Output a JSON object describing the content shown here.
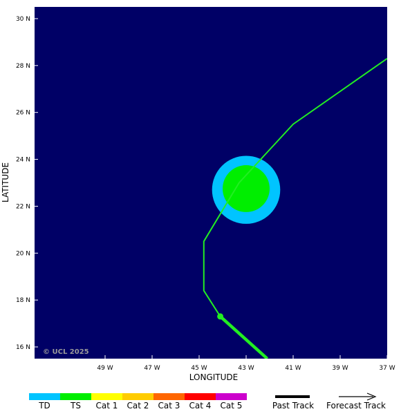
{
  "colors": {
    "ocean": "#000066",
    "track": "#22ee22",
    "td": "#00c4ff",
    "ts": "#00ee00",
    "cat1": "#ffff00",
    "cat2": "#ffcc00",
    "cat3": "#ff6600",
    "cat4": "#ff0000",
    "cat5": "#cc00cc"
  },
  "map": {
    "lon_range": [
      -52.0,
      -37.0
    ],
    "lat_range": [
      15.5,
      30.5
    ],
    "x_ticks": [
      {
        "value": -49,
        "label": "49 W"
      },
      {
        "value": -47,
        "label": "47 W"
      },
      {
        "value": -45,
        "label": "45 W"
      },
      {
        "value": -43,
        "label": "43 W"
      },
      {
        "value": -41,
        "label": "41 W"
      },
      {
        "value": -39,
        "label": "39 W"
      },
      {
        "value": -37,
        "label": "37 W"
      }
    ],
    "y_ticks": [
      {
        "value": 16,
        "label": "16 N"
      },
      {
        "value": 18,
        "label": "18 N"
      },
      {
        "value": 20,
        "label": "20 N"
      },
      {
        "value": 22,
        "label": "22 N"
      },
      {
        "value": 24,
        "label": "24 N"
      },
      {
        "value": 26,
        "label": "26 N"
      },
      {
        "value": 28,
        "label": "28 N"
      },
      {
        "value": 30,
        "label": "30 N"
      }
    ],
    "xlabel": "LONGITUDE",
    "ylabel": "LATITUDE",
    "copyright": "© UCL 2025"
  },
  "past_track": [
    {
      "lon": -44.1,
      "lat": 17.3
    },
    {
      "lon": -42.1,
      "lat": 15.5
    }
  ],
  "current_position": {
    "lon": -44.1,
    "lat": 17.3
  },
  "forecast_track": [
    {
      "lon": -44.1,
      "lat": 17.3
    },
    {
      "lon": -44.8,
      "lat": 18.4
    },
    {
      "lon": -44.8,
      "lat": 20.5
    },
    {
      "lon": -43.3,
      "lat": 23.0
    },
    {
      "lon": -41.0,
      "lat": 25.5
    },
    {
      "lon": -37.0,
      "lat": 28.3
    }
  ],
  "wind_field": {
    "center": {
      "lon": -43.0,
      "lat": 22.7
    },
    "td_radius_deg": 1.45,
    "ts_center": {
      "lon": -43.0,
      "lat": 22.75
    },
    "ts_radius_deg": 1.0
  },
  "legend": {
    "categories": [
      {
        "label": "TD",
        "color": "#00c4ff"
      },
      {
        "label": "TS",
        "color": "#00ee00"
      },
      {
        "label": "Cat 1",
        "color": "#ffff00"
      },
      {
        "label": "Cat 2",
        "color": "#ffcc00"
      },
      {
        "label": "Cat 3",
        "color": "#ff6600"
      },
      {
        "label": "Cat 4",
        "color": "#ff0000"
      },
      {
        "label": "Cat 5",
        "color": "#cc00cc"
      }
    ],
    "past_track_label": "Past Track",
    "forecast_track_label": "Forecast Track"
  }
}
